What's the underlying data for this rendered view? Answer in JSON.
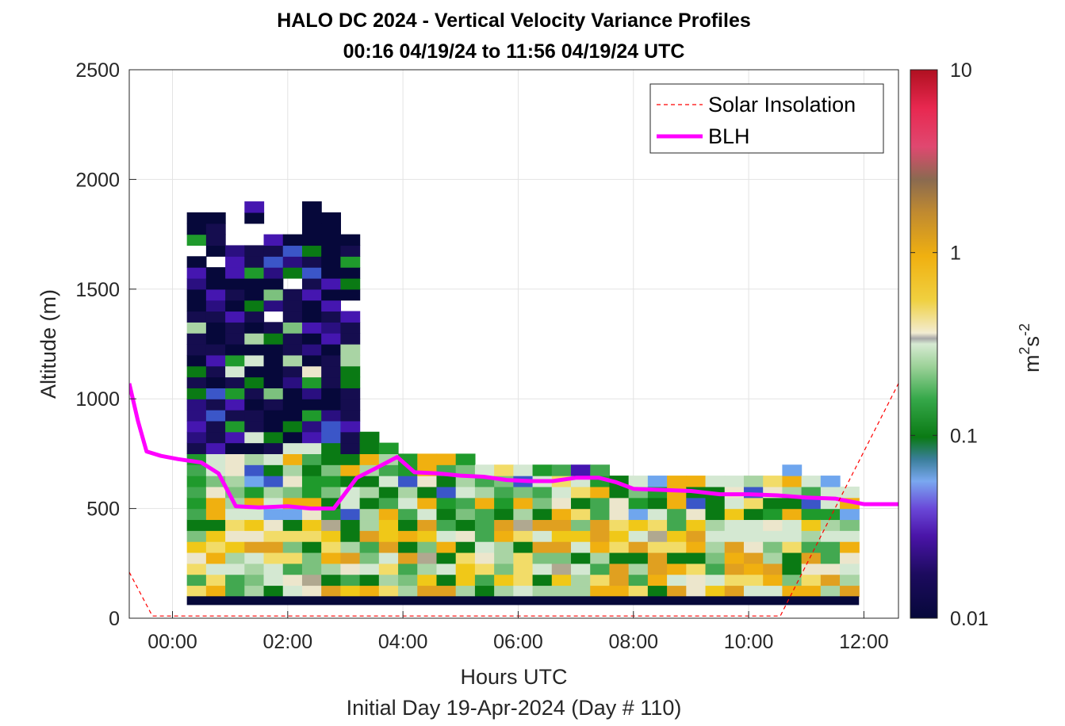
{
  "chart_data": {
    "type": "heatmap",
    "title": "HALO DC 2024 - Vertical Velocity Variance Profiles",
    "subtitle": "00:16 04/19/24 to 11:56 04/19/24  UTC",
    "xlabel": "Hours UTC",
    "xlabel2": "Initial Day 19-Apr-2024 (Day # 110)",
    "ylabel": "Altitude (m)",
    "xlim": [
      -0.75,
      12.6
    ],
    "ylim": [
      0,
      2500
    ],
    "x_ticks": [
      0,
      2,
      4,
      6,
      8,
      10,
      12
    ],
    "x_tick_labels": [
      "00:00",
      "02:00",
      "04:00",
      "06:00",
      "08:00",
      "10:00",
      "12:00"
    ],
    "y_ticks": [
      0,
      500,
      1000,
      1500,
      2000,
      2500
    ],
    "y_tick_labels": [
      "0",
      "500",
      "1000",
      "1500",
      "2000",
      "2500"
    ],
    "grid": true,
    "legend": {
      "placement": "top-right",
      "entries": [
        {
          "label": "Solar Insolation",
          "color": "#ff0000",
          "style": "dashed"
        },
        {
          "label": "BLH",
          "color": "#ff00ff",
          "style": "solid"
        }
      ]
    },
    "colorbar": {
      "label": "m2s-2",
      "label_base": "m",
      "label_sup1": "2",
      "label_mid": "s",
      "label_sup2": "-2",
      "scale": "log",
      "range": [
        0.01,
        10
      ],
      "ticks": [
        0.01,
        0.1,
        1,
        10
      ],
      "tick_labels": [
        "0.01",
        "0.1",
        "1",
        "10"
      ]
    },
    "heatmap": {
      "time_start": 0.25,
      "time_step": 0.3333,
      "n_times": 35,
      "alt_start": 100,
      "alt_step": 50,
      "surface_row_value": 0.01,
      "top_altitudes_m": [
        1875,
        1825,
        1675,
        1875,
        1775,
        1725,
        1875,
        1825,
        1725,
        850,
        800,
        750,
        750,
        750,
        750,
        700,
        700,
        700,
        700,
        700,
        700,
        700,
        650,
        650,
        650,
        650,
        650,
        650,
        650,
        650,
        650,
        700,
        650,
        650,
        600
      ]
    },
    "series": [
      {
        "name": "BLH",
        "x": [
          -0.75,
          -0.6,
          -0.45,
          -0.2,
          0.1,
          0.5,
          0.8,
          1.1,
          1.5,
          2.0,
          2.4,
          2.8,
          3.2,
          3.5,
          3.9,
          4.2,
          4.6,
          5.0,
          5.4,
          5.8,
          6.2,
          6.6,
          7.0,
          7.4,
          7.7,
          8.0,
          8.5,
          9.0,
          9.5,
          10.0,
          10.5,
          11.0,
          11.5,
          12.0,
          12.6
        ],
        "y": [
          1070,
          900,
          760,
          740,
          725,
          710,
          660,
          510,
          505,
          510,
          500,
          500,
          640,
          680,
          735,
          665,
          660,
          650,
          645,
          630,
          625,
          625,
          640,
          640,
          620,
          590,
          585,
          580,
          565,
          565,
          560,
          550,
          545,
          520,
          520
        ]
      },
      {
        "name": "Solar Insolation",
        "x": [
          -0.75,
          -0.35,
          -0.3,
          10.55,
          12.6
        ],
        "y": [
          210,
          10,
          10,
          10,
          1070
        ]
      }
    ]
  }
}
